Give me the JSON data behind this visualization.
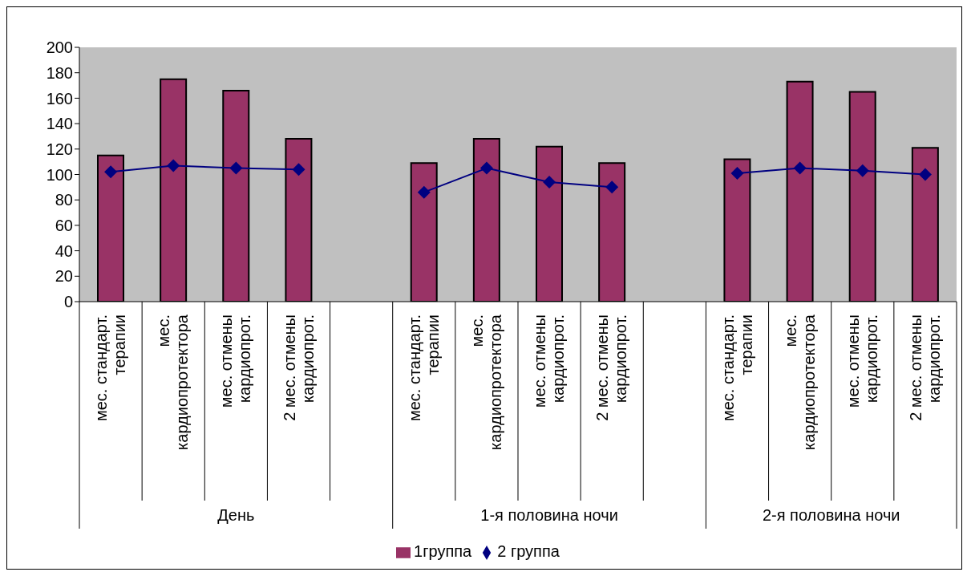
{
  "chart_data": {
    "type": "bar",
    "categories": [
      "мес. стандарт. терапии",
      "мес. кардиопротектора",
      "мес. отмены кардиопрот.",
      "2 мес. отмены кардиопрот.",
      null,
      "мес. стандарт. терапии",
      "мес. кардиопротектора",
      "мес. отмены кардиопрот.",
      "2 мес. отмены кардиопрот.",
      null,
      "мес. стандарт. терапии",
      "мес. кардиопротектора",
      "мес. отмены кардиопрот.",
      "2 мес. отмены кардиопрот."
    ],
    "series": [
      {
        "name": "1группа",
        "color": "#993366",
        "values": [
          115,
          175,
          166,
          128,
          null,
          109,
          128,
          122,
          109,
          null,
          112,
          173,
          165,
          121
        ]
      },
      {
        "name": "2 группа",
        "type": "line",
        "color": "#000080",
        "values": [
          102,
          107,
          105,
          104,
          null,
          86,
          105,
          94,
          90,
          null,
          101,
          105,
          103,
          100
        ]
      }
    ],
    "annotations": [
      "День",
      "1-я половина ночи",
      "2-я половина ночи"
    ],
    "ylim": [
      0,
      200
    ],
    "yticks": [
      0,
      20,
      40,
      60,
      80,
      100,
      120,
      140,
      160,
      180,
      200
    ],
    "marker": "diamond",
    "legend": "bottom"
  }
}
